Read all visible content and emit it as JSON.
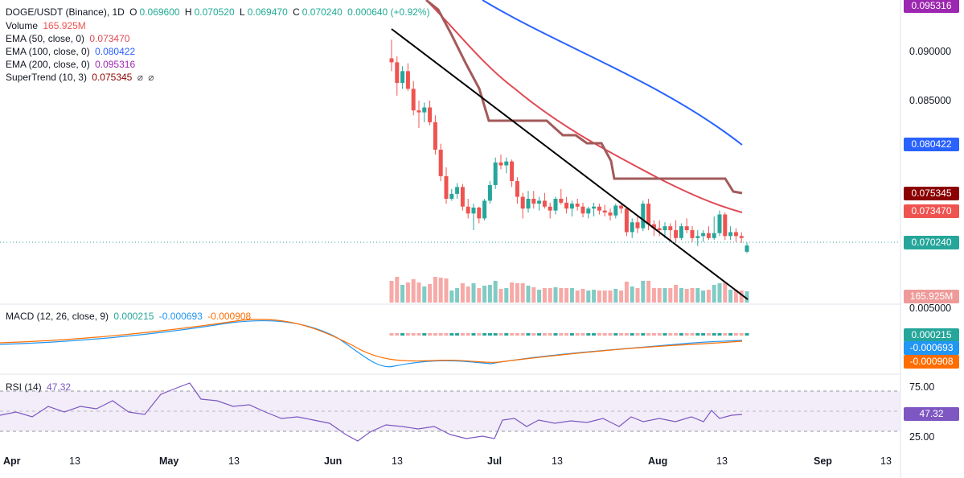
{
  "header": {
    "symbol": "DOGE/USDT (Binance), 1D",
    "o_label": "O",
    "o_value": "0.069600",
    "h_label": "H",
    "h_value": "0.070520",
    "l_label": "L",
    "l_value": "0.069470",
    "c_label": "C",
    "c_value": "0.070240",
    "change": "0.000640 (+0.92%)",
    "volume_label": "Volume",
    "volume_value": "165.925M"
  },
  "indicators": {
    "ema50_label": "EMA (50, close, 0)",
    "ema50_value": "0.073470",
    "ema100_label": "EMA (100, close, 0)",
    "ema100_value": "0.080422",
    "ema200_label": "EMA (200, close, 0)",
    "ema200_value": "0.095316",
    "supertrend_label": "SuperTrend (10, 3)",
    "supertrend_value": "0.075345",
    "macd_label": "MACD (12, 26, close, 9)",
    "macd_hist": "0.000215",
    "macd_line": "-0.000693",
    "macd_signal": "-0.000908",
    "rsi_label": "RSI (14)",
    "rsi_value": "47.32"
  },
  "price_axis": [
    "0.090000",
    "0.085000",
    "0.005000"
  ],
  "rsi_axis": [
    "75.00",
    "25.00"
  ],
  "price_labels": {
    "ema200": "0.095316",
    "ema100": "0.080422",
    "supertrend": "0.075345",
    "ema50": "0.073470",
    "last": "0.070240",
    "volume": "165.925M",
    "macd_hist": "0.000215",
    "macd_line": "-0.000693",
    "macd_signal": "-0.000908",
    "rsi": "47.32"
  },
  "x_axis": [
    "Apr",
    "13",
    "May",
    "13",
    "Jun",
    "13",
    "Jul",
    "13",
    "Aug",
    "13",
    "Sep",
    "13"
  ],
  "colors": {
    "up": "#26a69a",
    "down": "#ef5350",
    "ema50": "#e04a55",
    "ema100": "#2962ff",
    "ema200": "#9c27b0",
    "supertrend": "#8b0000",
    "macd": "#2196f3",
    "signal": "#ff6d00",
    "rsi": "#7e57c2"
  },
  "chart_data": {
    "type": "candlestick",
    "symbol": "DOGE/USDT",
    "exchange": "Binance",
    "timeframe": "1D",
    "dates": [
      "2024-06-13",
      "2024-06-14",
      "2024-06-15",
      "2024-06-16",
      "2024-06-17",
      "2024-06-18",
      "2024-06-19",
      "2024-06-20",
      "2024-06-21",
      "2024-06-22",
      "2024-06-23",
      "2024-06-24",
      "2024-06-25",
      "2024-06-26",
      "2024-06-27",
      "2024-06-28",
      "2024-06-29",
      "2024-06-30",
      "2024-07-01",
      "2024-07-02",
      "2024-07-03",
      "2024-07-04",
      "2024-07-05",
      "2024-07-06",
      "2024-07-07",
      "2024-07-08",
      "2024-07-09",
      "2024-07-10",
      "2024-07-11",
      "2024-07-12",
      "2024-07-13",
      "2024-07-14",
      "2024-07-15",
      "2024-07-16",
      "2024-07-17",
      "2024-07-18",
      "2024-07-19",
      "2024-07-20",
      "2024-07-21",
      "2024-07-22",
      "2024-07-23",
      "2024-07-24",
      "2024-07-25",
      "2024-07-26",
      "2024-07-27",
      "2024-07-28",
      "2024-07-29",
      "2024-07-30",
      "2024-07-31",
      "2024-08-01",
      "2024-08-02",
      "2024-08-03",
      "2024-08-04",
      "2024-08-05",
      "2024-08-06",
      "2024-08-07",
      "2024-08-08",
      "2024-08-09",
      "2024-08-10",
      "2024-08-11",
      "2024-08-12",
      "2024-08-13",
      "2024-08-14",
      "2024-08-15",
      "2024-08-16",
      "2024-08-17"
    ],
    "ohlc": [
      [
        0.0893,
        0.0912,
        0.088,
        0.0889
      ],
      [
        0.0889,
        0.0895,
        0.0855,
        0.0868
      ],
      [
        0.0868,
        0.0885,
        0.0862,
        0.088
      ],
      [
        0.088,
        0.0888,
        0.086,
        0.0862
      ],
      [
        0.0862,
        0.087,
        0.0835,
        0.084
      ],
      [
        0.084,
        0.085,
        0.0822,
        0.0838
      ],
      [
        0.0838,
        0.0848,
        0.0828,
        0.0843
      ],
      [
        0.0843,
        0.085,
        0.0825,
        0.0828
      ],
      [
        0.0828,
        0.0835,
        0.0795,
        0.08
      ],
      [
        0.08,
        0.0806,
        0.0768,
        0.0773
      ],
      [
        0.0773,
        0.0782,
        0.0745,
        0.075
      ],
      [
        0.075,
        0.076,
        0.0748,
        0.0755
      ],
      [
        0.0755,
        0.0766,
        0.075,
        0.0762
      ],
      [
        0.0762,
        0.0765,
        0.0738,
        0.0742
      ],
      [
        0.0742,
        0.075,
        0.073,
        0.0735
      ],
      [
        0.0735,
        0.0745,
        0.0718,
        0.0741
      ],
      [
        0.0741,
        0.0742,
        0.0725,
        0.073
      ],
      [
        0.073,
        0.075,
        0.0728,
        0.0748
      ],
      [
        0.0748,
        0.0768,
        0.0745,
        0.0764
      ],
      [
        0.0764,
        0.0792,
        0.076,
        0.0787
      ],
      [
        0.0787,
        0.0795,
        0.078,
        0.0784
      ],
      [
        0.0784,
        0.0792,
        0.0776,
        0.0788
      ],
      [
        0.0788,
        0.079,
        0.0762,
        0.0768
      ],
      [
        0.0768,
        0.0772,
        0.0745,
        0.0752
      ],
      [
        0.0752,
        0.0756,
        0.073,
        0.074
      ],
      [
        0.074,
        0.0758,
        0.0736,
        0.075
      ],
      [
        0.075,
        0.0758,
        0.074,
        0.0745
      ],
      [
        0.0745,
        0.0752,
        0.0738,
        0.0748
      ],
      [
        0.0748,
        0.0756,
        0.074,
        0.0742
      ],
      [
        0.0742,
        0.0746,
        0.073,
        0.0738
      ],
      [
        0.0738,
        0.0752,
        0.0734,
        0.075
      ],
      [
        0.075,
        0.076,
        0.0744,
        0.0746
      ],
      [
        0.0746,
        0.0752,
        0.0735,
        0.074
      ],
      [
        0.074,
        0.0748,
        0.0732,
        0.0745
      ],
      [
        0.0745,
        0.075,
        0.0738,
        0.0742
      ],
      [
        0.0742,
        0.0746,
        0.0731,
        0.0735
      ],
      [
        0.0735,
        0.0742,
        0.073,
        0.074
      ],
      [
        0.074,
        0.0746,
        0.0732,
        0.0742
      ],
      [
        0.0742,
        0.0745,
        0.0734,
        0.0738
      ],
      [
        0.0738,
        0.0744,
        0.0732,
        0.0736
      ],
      [
        0.0736,
        0.074,
        0.0728,
        0.0733
      ],
      [
        0.0733,
        0.0745,
        0.073,
        0.0743
      ],
      [
        0.0743,
        0.0746,
        0.0735,
        0.074
      ],
      [
        0.074,
        0.0742,
        0.0712,
        0.0716
      ],
      [
        0.0716,
        0.073,
        0.071,
        0.0726
      ],
      [
        0.0726,
        0.0732,
        0.0715,
        0.072
      ],
      [
        0.072,
        0.0748,
        0.0717,
        0.0745
      ],
      [
        0.0745,
        0.075,
        0.0718,
        0.0724
      ],
      [
        0.0724,
        0.0728,
        0.0712,
        0.072
      ],
      [
        0.072,
        0.0728,
        0.0712,
        0.0718
      ],
      [
        0.0718,
        0.0726,
        0.071,
        0.0722
      ],
      [
        0.0722,
        0.0725,
        0.0708,
        0.0718
      ],
      [
        0.0718,
        0.0728,
        0.0705,
        0.071
      ],
      [
        0.071,
        0.0725,
        0.0708,
        0.0722
      ],
      [
        0.0722,
        0.073,
        0.0715,
        0.0718
      ],
      [
        0.0718,
        0.0722,
        0.0706,
        0.071
      ],
      [
        0.071,
        0.0718,
        0.0702,
        0.0712
      ],
      [
        0.0712,
        0.0718,
        0.0706,
        0.0715
      ],
      [
        0.0715,
        0.0722,
        0.0708,
        0.071
      ],
      [
        0.071,
        0.0732,
        0.0708,
        0.0715
      ],
      [
        0.0715,
        0.0738,
        0.0712,
        0.0734
      ],
      [
        0.0734,
        0.0736,
        0.0708,
        0.0712
      ],
      [
        0.0712,
        0.0722,
        0.0708,
        0.0716
      ],
      [
        0.0716,
        0.072,
        0.0706,
        0.0712
      ],
      [
        0.0712,
        0.0716,
        0.0705,
        0.071
      ],
      [
        0.0696,
        0.07052,
        0.06947,
        0.07024
      ]
    ],
    "ema50_last": 0.07347,
    "ema100_last": 0.080422,
    "ema200_last": 0.095316,
    "supertrend_last": 0.075345,
    "last_close": 0.07024,
    "last_volume": "165.925M",
    "macd": {
      "histogram": 0.000215,
      "macd": -0.000693,
      "signal": -0.000908
    },
    "rsi": {
      "value": 47.32,
      "upper": 75,
      "lower": 25
    },
    "trendline": {
      "from": [
        "2024-06-13",
        0.0923
      ],
      "to": [
        "2024-08-17",
        0.0522
      ]
    },
    "price_axis_ticks": [
      0.09,
      0.085,
      0.005
    ]
  }
}
